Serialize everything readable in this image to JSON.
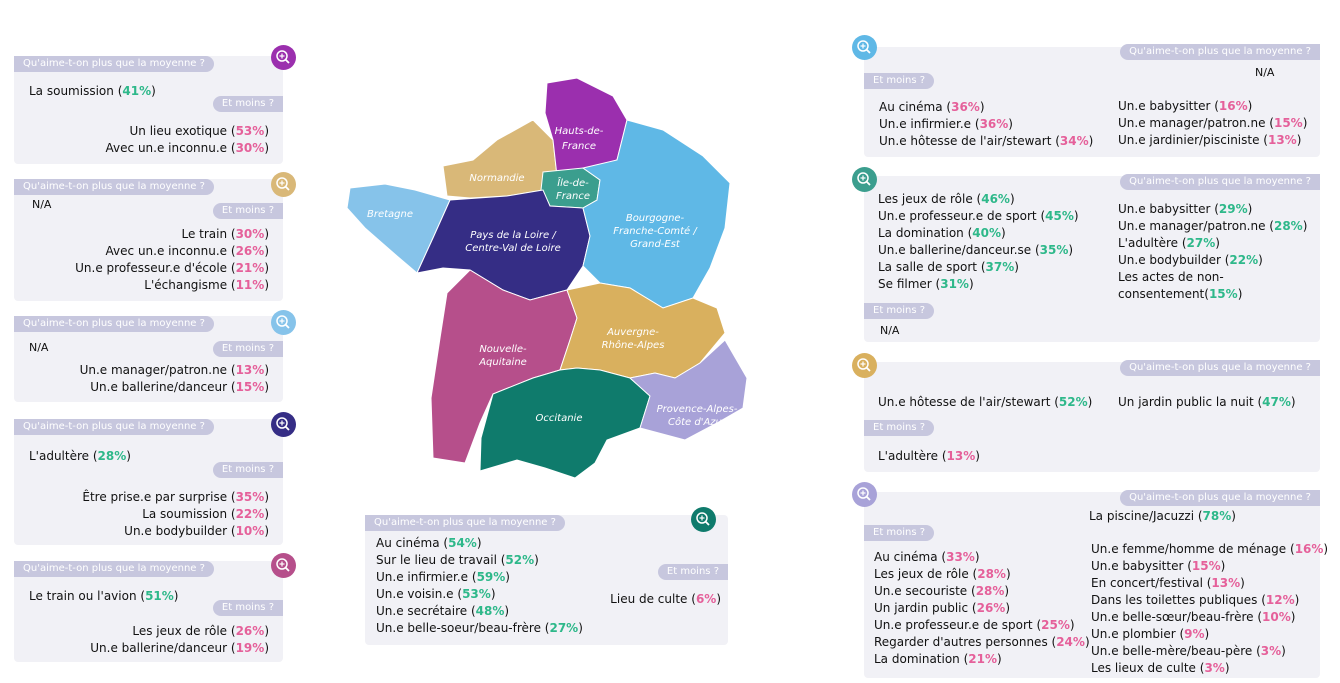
{
  "labels": {
    "plus": "Qu'aime-t-on plus que la moyenne ?",
    "moins": "Et moins ?",
    "na": "N/A"
  },
  "colors": {
    "hauts_de_france": "#9b2fae",
    "normandie": "#d9b878",
    "ile_de_france": "#3b9e8e",
    "bretagne": "#86c3ea",
    "pays_de_la_loire_cvl": "#352d85",
    "bourgogne_grand_est": "#5fb8e6",
    "nouvelle_aquitaine": "#b64f8b",
    "auvergne_rhone_alpes": "#d9b05e",
    "occitanie": "#0f7b6c",
    "paca": "#a8a2d8",
    "positive": "#2eb88a",
    "negative": "#e5609a"
  },
  "map": {
    "regions": {
      "hauts_de_france": "Hauts-de-France",
      "normandie": "Normandie",
      "ile_de_france": "Île-de-France",
      "bretagne": "Bretagne",
      "pays_de_la_loire_cvl": "Pays de la Loire / Centre-Val de Loire",
      "bourgogne_grand_est": "Bourgogne-Franche-Comté / Grand-Est",
      "nouvelle_aquitaine": "Nouvelle-Aquitaine",
      "auvergne_rhone_alpes": "Auvergne-Rhône-Alpes",
      "occitanie": "Occitanie",
      "paca": "Provence-Alpes-Côte d'Azur"
    }
  },
  "cards": {
    "hdf": {
      "icon": "zoom-icon",
      "plus": [
        {
          "label": "La soumission",
          "pct": "41%"
        }
      ],
      "moins": [
        {
          "label": "Un lieu exotique",
          "pct": "53%"
        },
        {
          "label": "Avec un.e inconnu.e",
          "pct": "30%"
        }
      ]
    },
    "norm": {
      "plus_na": "N/A",
      "moins": [
        {
          "label": "Le train",
          "pct": "30%"
        },
        {
          "label": "Avec un.e inconnu.e",
          "pct": "26%"
        },
        {
          "label": "Un.e professeur.e d'école",
          "pct": "21%"
        },
        {
          "label": "L'échangisme",
          "pct": "11%"
        }
      ]
    },
    "bret": {
      "plus_na": "N/A",
      "moins": [
        {
          "label": "Un.e manager/patron.ne",
          "pct": "13%"
        },
        {
          "label": "Un.e ballerine/danceur",
          "pct": "15%"
        }
      ]
    },
    "pdl": {
      "plus": [
        {
          "label": "L'adultère",
          "pct": "28%"
        }
      ],
      "moins": [
        {
          "label": "Être prise.e par surprise",
          "pct": "35%"
        },
        {
          "label": "La soumission",
          "pct": "22%"
        },
        {
          "label": "Un.e bodybuilder",
          "pct": "10%"
        }
      ]
    },
    "naq": {
      "plus": [
        {
          "label": "Le train ou l'avion",
          "pct": "51%"
        }
      ],
      "moins": [
        {
          "label": "Les jeux de rôle",
          "pct": "26%"
        },
        {
          "label": "Un.e ballerine/danceur",
          "pct": "19%"
        }
      ]
    },
    "occ": {
      "plus": [
        {
          "label": "Au cinéma",
          "pct": "54%"
        },
        {
          "label": "Sur le lieu de travail",
          "pct": "52%"
        },
        {
          "label": "Un.e infirmier.e",
          "pct": "59%"
        },
        {
          "label": "Un.e voisin.e",
          "pct": "53%"
        },
        {
          "label": "Un.e secrétaire",
          "pct": "48%"
        },
        {
          "label": "Un.e belle-soeur/beau-frère",
          "pct": "27%"
        }
      ],
      "moins": [
        {
          "label": "Lieu de culte",
          "pct": "6%"
        }
      ]
    },
    "bfc": {
      "plus_na": "N/A",
      "moins_left": [
        {
          "label": "Au cinéma",
          "pct": "36%"
        },
        {
          "label": "Un.e infirmier.e",
          "pct": "36%"
        },
        {
          "label": "Un.e hôtesse de l'air/stewart",
          "pct": "34%"
        }
      ],
      "moins_right": [
        {
          "label": "Un.e babysitter",
          "pct": "16%"
        },
        {
          "label": "Un.e manager/patron.ne",
          "pct": "15%"
        },
        {
          "label": "Un.e jardinier/pisciniste",
          "pct": "13%"
        }
      ]
    },
    "idf": {
      "plus_left": [
        {
          "label": "Les jeux de rôle",
          "pct": "46%"
        },
        {
          "label": "Un.e professeur.e de sport",
          "pct": "45%"
        },
        {
          "label": "La domination",
          "pct": "40%"
        },
        {
          "label": "Un.e ballerine/danceur.se",
          "pct": "35%"
        },
        {
          "label": "La salle de sport",
          "pct": "37%"
        },
        {
          "label": "Se filmer",
          "pct": "31%"
        }
      ],
      "plus_right": [
        {
          "label": "Un.e babysitter",
          "pct": "29%"
        },
        {
          "label": "Un.e manager/patron.ne",
          "pct": "28%"
        },
        {
          "label": "L'adultère",
          "pct": "27%"
        },
        {
          "label": "Un.e bodybuilder",
          "pct": "22%"
        }
      ],
      "plus_right_last": {
        "label1": "Les actes de non-",
        "label2": "consentement",
        "pct": "15%"
      },
      "moins_na": "N/A"
    },
    "ara": {
      "plus": [
        {
          "label": "Un.e hôtesse de l'air/stewart",
          "pct": "52%"
        },
        {
          "label": "Un jardin public la nuit",
          "pct": "47%"
        }
      ],
      "moins": [
        {
          "label": "L'adultère",
          "pct": "13%"
        }
      ]
    },
    "paca": {
      "plus": [
        {
          "label": "La piscine/Jacuzzi",
          "pct": "78%"
        }
      ],
      "moins_left": [
        {
          "label": "Au cinéma",
          "pct": "33%"
        },
        {
          "label": "Les jeux de rôle",
          "pct": "28%"
        },
        {
          "label": "Un.e secouriste",
          "pct": "28%"
        },
        {
          "label": "Un jardin public",
          "pct": "26%"
        },
        {
          "label": "Un.e professeur.e de sport",
          "pct": "25%"
        },
        {
          "label": "Regarder d'autres personnes",
          "pct": "24%"
        },
        {
          "label": "La domination",
          "pct": "21%"
        }
      ],
      "moins_right": [
        {
          "label": "Un.e femme/homme de ménage",
          "pct": "16%"
        },
        {
          "label": "Un.e babysitter",
          "pct": "15%"
        },
        {
          "label": "En concert/festival",
          "pct": "13%"
        },
        {
          "label": "Dans les toilettes publiques",
          "pct": "12%"
        },
        {
          "label": "Un.e belle-sœur/beau-frère",
          "pct": "10%"
        },
        {
          "label": "Un.e plombier",
          "pct": "9%"
        },
        {
          "label": "Un.e belle-mère/beau-père",
          "pct": "3%"
        },
        {
          "label": "Les lieux de culte",
          "pct": "3%"
        }
      ]
    }
  }
}
